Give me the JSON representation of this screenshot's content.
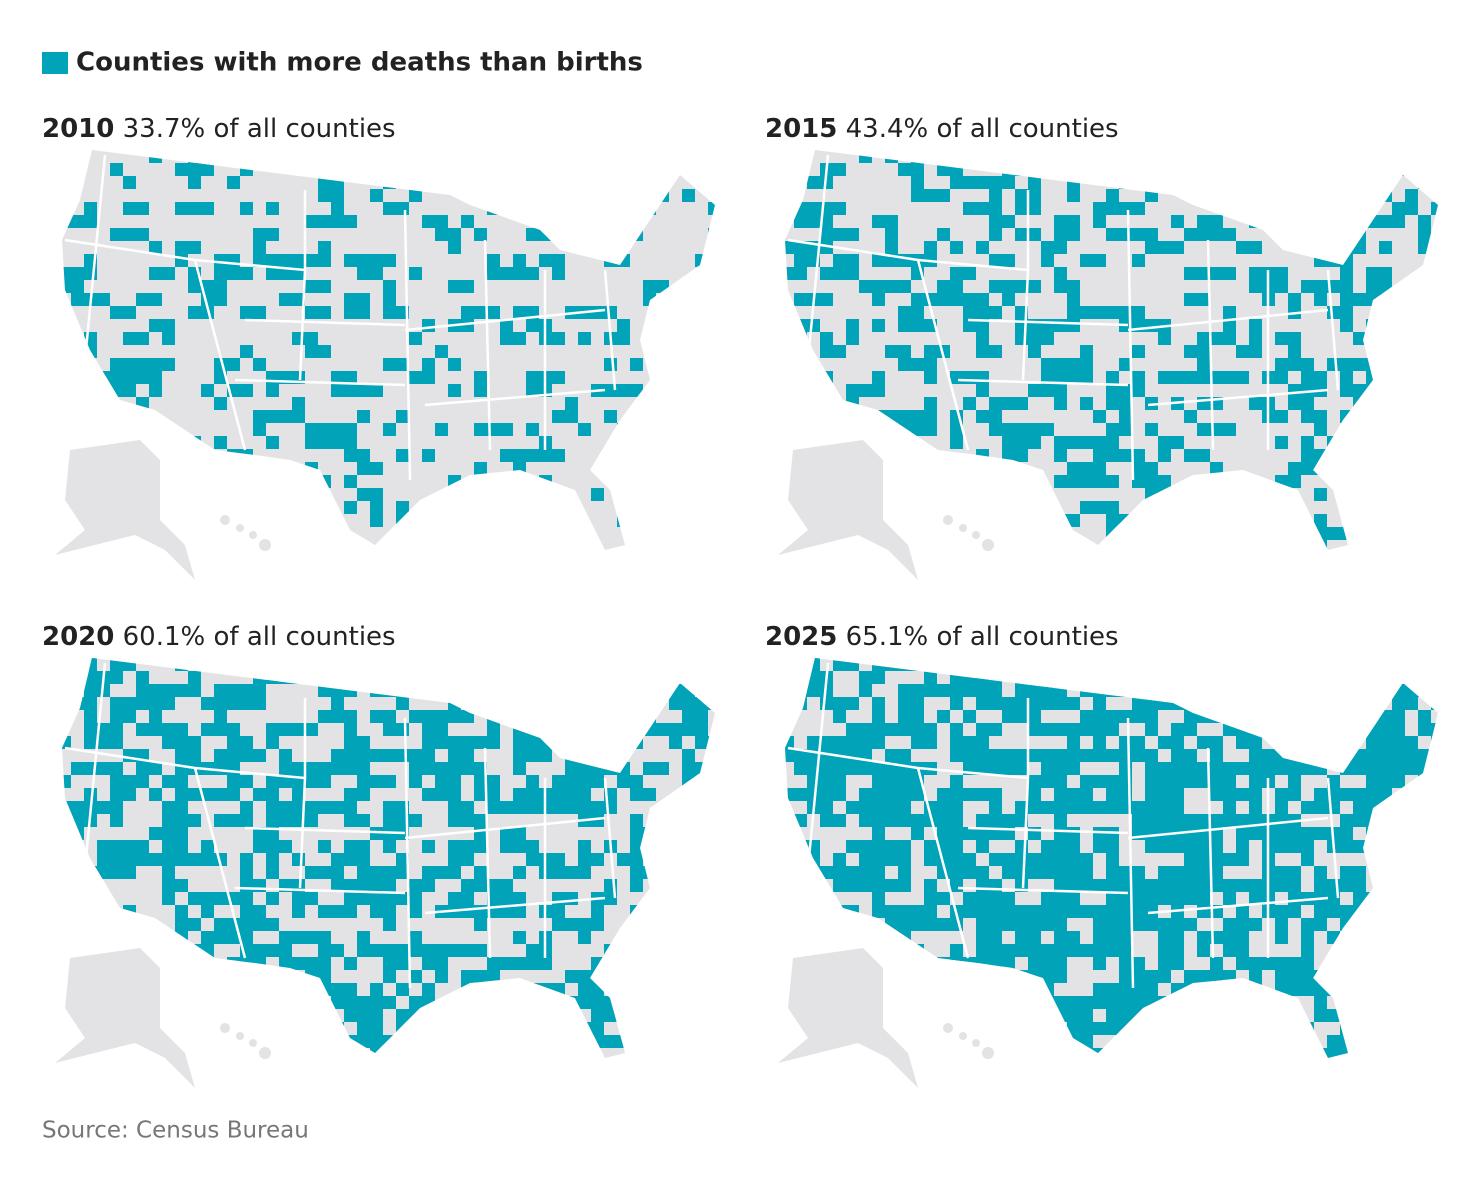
{
  "legend": {
    "label": "Counties with more deaths than births"
  },
  "panels": [
    {
      "year": "2010",
      "label": "33.7% of all counties"
    },
    {
      "year": "2015",
      "label": "43.4% of all counties"
    },
    {
      "year": "2020",
      "label": "60.1% of all counties"
    },
    {
      "year": "2025",
      "label": "65.1% of all counties"
    }
  ],
  "source": "Source: Census Bureau"
}
